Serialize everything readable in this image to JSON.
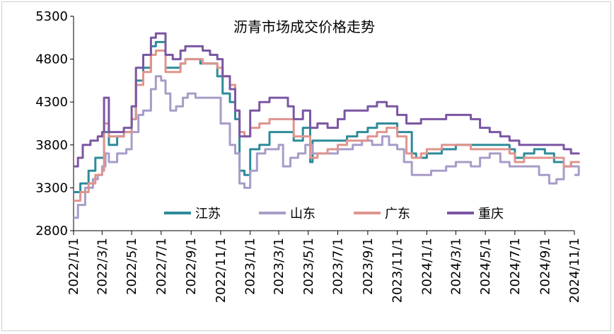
{
  "chart_data": {
    "type": "line",
    "title": "沥青市场成交价格走势",
    "xlabel": "",
    "ylabel": "",
    "ylim": [
      2800,
      5300
    ],
    "yticks": [
      "5300",
      "4800",
      "4300",
      "3800",
      "3300",
      "2800"
    ],
    "xticks": [
      "2022/1/1",
      "2022/3/1",
      "2022/5/1",
      "2022/7/1",
      "2022/9/1",
      "2022/11/1",
      "2023/1/1",
      "2023/3/1",
      "2023/5/1",
      "2023/7/1",
      "2023/9/1",
      "2023/11/1",
      "2024/1/1",
      "2024/3/1",
      "2024/5/1",
      "2024/7/1",
      "2024/9/1",
      "2024/11/1"
    ],
    "legend_position": "bottom-inside",
    "grid": false,
    "series": [
      {
        "name": "江苏",
        "color": "#2e8b9a",
        "points": [
          [
            "2022/1/1",
            3250
          ],
          [
            "2022/1/15",
            3350
          ],
          [
            "2022/2/1",
            3500
          ],
          [
            "2022/2/15",
            3650
          ],
          [
            "2022/3/1",
            3650
          ],
          [
            "2022/3/5",
            3950
          ],
          [
            "2022/3/15",
            3800
          ],
          [
            "2022/4/1",
            3900
          ],
          [
            "2022/4/15",
            3950
          ],
          [
            "2022/5/1",
            4100
          ],
          [
            "2022/5/10",
            4550
          ],
          [
            "2022/5/25",
            4700
          ],
          [
            "2022/6/10",
            4950
          ],
          [
            "2022/6/20",
            5000
          ],
          [
            "2022/7/1",
            5000
          ],
          [
            "2022/7/10",
            4700
          ],
          [
            "2022/7/25",
            4700
          ],
          [
            "2022/8/10",
            4750
          ],
          [
            "2022/8/20",
            4800
          ],
          [
            "2022/9/10",
            4800
          ],
          [
            "2022/9/20",
            4750
          ],
          [
            "2022/10/10",
            4750
          ],
          [
            "2022/10/25",
            4600
          ],
          [
            "2022/11/5",
            4400
          ],
          [
            "2022/11/20",
            4300
          ],
          [
            "2022/12/1",
            4100
          ],
          [
            "2022/12/10",
            3500
          ],
          [
            "2022/12/20",
            3450
          ],
          [
            "2023/1/1",
            3750
          ],
          [
            "2023/1/20",
            3800
          ],
          [
            "2023/2/10",
            3950
          ],
          [
            "2023/3/1",
            3950
          ],
          [
            "2023/3/20",
            3950
          ],
          [
            "2023/4/1",
            3850
          ],
          [
            "2023/4/20",
            4000
          ],
          [
            "2023/5/5",
            3600
          ],
          [
            "2023/5/10",
            3850
          ],
          [
            "2023/6/1",
            3850
          ],
          [
            "2023/7/1",
            3850
          ],
          [
            "2023/7/20",
            3900
          ],
          [
            "2023/8/10",
            3950
          ],
          [
            "2023/9/1",
            4000
          ],
          [
            "2023/9/20",
            4050
          ],
          [
            "2023/10/10",
            4050
          ],
          [
            "2023/11/1",
            3950
          ],
          [
            "2023/11/15",
            3950
          ],
          [
            "2023/12/1",
            3700
          ],
          [
            "2023/12/10",
            3650
          ],
          [
            "2024/1/1",
            3700
          ],
          [
            "2024/2/1",
            3750
          ],
          [
            "2024/3/1",
            3800
          ],
          [
            "2024/4/1",
            3800
          ],
          [
            "2024/5/1",
            3800
          ],
          [
            "2024/6/1",
            3800
          ],
          [
            "2024/6/20",
            3750
          ],
          [
            "2024/7/1",
            3650
          ],
          [
            "2024/7/20",
            3700
          ],
          [
            "2024/8/10",
            3750
          ],
          [
            "2024/9/1",
            3700
          ],
          [
            "2024/9/20",
            3600
          ],
          [
            "2024/10/10",
            3550
          ],
          [
            "2024/10/25",
            3600
          ],
          [
            "2024/11/10",
            3600
          ]
        ]
      },
      {
        "name": "山东",
        "color": "#a89cc8",
        "points": [
          [
            "2022/1/1",
            2950
          ],
          [
            "2022/1/10",
            3100
          ],
          [
            "2022/1/25",
            3300
          ],
          [
            "2022/2/10",
            3400
          ],
          [
            "2022/2/20",
            3450
          ],
          [
            "2022/3/1",
            3550
          ],
          [
            "2022/3/8",
            3700
          ],
          [
            "2022/3/15",
            3600
          ],
          [
            "2022/4/1",
            3700
          ],
          [
            "2022/4/20",
            3750
          ],
          [
            "2022/5/1",
            3950
          ],
          [
            "2022/5/15",
            4150
          ],
          [
            "2022/5/25",
            4200
          ],
          [
            "2022/6/10",
            4450
          ],
          [
            "2022/6/20",
            4600
          ],
          [
            "2022/7/1",
            4550
          ],
          [
            "2022/7/10",
            4400
          ],
          [
            "2022/7/20",
            4200
          ],
          [
            "2022/8/1",
            4250
          ],
          [
            "2022/8/15",
            4350
          ],
          [
            "2022/8/25",
            4400
          ],
          [
            "2022/9/10",
            4350
          ],
          [
            "2022/9/25",
            4350
          ],
          [
            "2022/10/20",
            4350
          ],
          [
            "2022/11/1",
            4050
          ],
          [
            "2022/11/20",
            3800
          ],
          [
            "2022/12/1",
            3700
          ],
          [
            "2022/12/10",
            3350
          ],
          [
            "2022/12/20",
            3300
          ],
          [
            "2023/1/1",
            3500
          ],
          [
            "2023/1/15",
            3700
          ],
          [
            "2023/2/1",
            3750
          ],
          [
            "2023/2/20",
            3750
          ],
          [
            "2023/3/1",
            3800
          ],
          [
            "2023/3/10",
            3550
          ],
          [
            "2023/3/25",
            3650
          ],
          [
            "2023/4/10",
            3700
          ],
          [
            "2023/4/25",
            3800
          ],
          [
            "2023/5/10",
            3700
          ],
          [
            "2023/6/1",
            3700
          ],
          [
            "2023/7/1",
            3750
          ],
          [
            "2023/8/1",
            3800
          ],
          [
            "2023/8/20",
            3850
          ],
          [
            "2023/9/10",
            3800
          ],
          [
            "2023/10/1",
            3900
          ],
          [
            "2023/10/15",
            3800
          ],
          [
            "2023/11/1",
            3750
          ],
          [
            "2023/11/15",
            3600
          ],
          [
            "2023/12/1",
            3450
          ],
          [
            "2023/12/20",
            3450
          ],
          [
            "2024/1/10",
            3500
          ],
          [
            "2024/2/10",
            3550
          ],
          [
            "2024/3/1",
            3600
          ],
          [
            "2024/4/1",
            3550
          ],
          [
            "2024/4/20",
            3650
          ],
          [
            "2024/5/10",
            3700
          ],
          [
            "2024/6/1",
            3600
          ],
          [
            "2024/6/20",
            3550
          ],
          [
            "2024/7/10",
            3550
          ],
          [
            "2024/8/1",
            3550
          ],
          [
            "2024/8/20",
            3450
          ],
          [
            "2024/9/10",
            3350
          ],
          [
            "2024/9/25",
            3400
          ],
          [
            "2024/10/10",
            3550
          ],
          [
            "2024/10/25",
            3550
          ],
          [
            "2024/11/10",
            3450
          ]
        ]
      },
      {
        "name": "广东",
        "color": "#e0948e",
        "points": [
          [
            "2022/1/1",
            3150
          ],
          [
            "2022/1/15",
            3250
          ],
          [
            "2022/2/1",
            3350
          ],
          [
            "2022/2/15",
            3450
          ],
          [
            "2022/3/1",
            3500
          ],
          [
            "2022/3/5",
            4050
          ],
          [
            "2022/3/15",
            3900
          ],
          [
            "2022/4/1",
            3900
          ],
          [
            "2022/4/15",
            3950
          ],
          [
            "2022/5/1",
            4100
          ],
          [
            "2022/5/10",
            4500
          ],
          [
            "2022/5/25",
            4650
          ],
          [
            "2022/6/10",
            4850
          ],
          [
            "2022/6/20",
            4900
          ],
          [
            "2022/7/1",
            4900
          ],
          [
            "2022/7/10",
            4650
          ],
          [
            "2022/7/25",
            4650
          ],
          [
            "2022/8/10",
            4750
          ],
          [
            "2022/8/20",
            4800
          ],
          [
            "2022/9/10",
            4800
          ],
          [
            "2022/9/25",
            4750
          ],
          [
            "2022/10/10",
            4750
          ],
          [
            "2022/10/25",
            4700
          ],
          [
            "2022/11/5",
            4600
          ],
          [
            "2022/11/20",
            4500
          ],
          [
            "2022/12/1",
            4200
          ],
          [
            "2022/12/10",
            3950
          ],
          [
            "2022/12/20",
            3900
          ],
          [
            "2023/1/1",
            4000
          ],
          [
            "2023/1/20",
            4050
          ],
          [
            "2023/2/10",
            4100
          ],
          [
            "2023/3/1",
            4100
          ],
          [
            "2023/3/20",
            4100
          ],
          [
            "2023/4/1",
            3900
          ],
          [
            "2023/4/20",
            3900
          ],
          [
            "2023/5/5",
            3650
          ],
          [
            "2023/5/20",
            3700
          ],
          [
            "2023/6/10",
            3750
          ],
          [
            "2023/7/1",
            3800
          ],
          [
            "2023/7/20",
            3850
          ],
          [
            "2023/8/10",
            3850
          ],
          [
            "2023/9/1",
            3900
          ],
          [
            "2023/9/20",
            3950
          ],
          [
            "2023/10/10",
            4000
          ],
          [
            "2023/11/1",
            3900
          ],
          [
            "2023/11/20",
            3700
          ],
          [
            "2023/12/1",
            3650
          ],
          [
            "2023/12/20",
            3700
          ],
          [
            "2024/1/1",
            3750
          ],
          [
            "2024/2/1",
            3800
          ],
          [
            "2024/3/1",
            3800
          ],
          [
            "2024/4/1",
            3750
          ],
          [
            "2024/5/1",
            3750
          ],
          [
            "2024/6/1",
            3750
          ],
          [
            "2024/6/20",
            3700
          ],
          [
            "2024/7/1",
            3600
          ],
          [
            "2024/7/20",
            3650
          ],
          [
            "2024/8/10",
            3650
          ],
          [
            "2024/9/1",
            3650
          ],
          [
            "2024/9/20",
            3650
          ],
          [
            "2024/10/10",
            3550
          ],
          [
            "2024/10/25",
            3600
          ],
          [
            "2024/11/10",
            3600
          ]
        ]
      },
      {
        "name": "重庆",
        "color": "#7b56a3",
        "points": [
          [
            "2022/1/1",
            3550
          ],
          [
            "2022/1/10",
            3650
          ],
          [
            "2022/1/20",
            3800
          ],
          [
            "2022/2/5",
            3850
          ],
          [
            "2022/2/20",
            3900
          ],
          [
            "2022/3/1",
            3950
          ],
          [
            "2022/3/5",
            4350
          ],
          [
            "2022/3/15",
            3950
          ],
          [
            "2022/4/1",
            3950
          ],
          [
            "2022/4/15",
            4000
          ],
          [
            "2022/5/1",
            4250
          ],
          [
            "2022/5/10",
            4700
          ],
          [
            "2022/5/25",
            4850
          ],
          [
            "2022/6/10",
            5050
          ],
          [
            "2022/6/20",
            5100
          ],
          [
            "2022/7/1",
            5100
          ],
          [
            "2022/7/10",
            4850
          ],
          [
            "2022/7/25",
            4800
          ],
          [
            "2022/8/10",
            4900
          ],
          [
            "2022/8/20",
            4950
          ],
          [
            "2022/9/10",
            4950
          ],
          [
            "2022/9/25",
            4900
          ],
          [
            "2022/10/10",
            4850
          ],
          [
            "2022/10/25",
            4800
          ],
          [
            "2022/11/5",
            4600
          ],
          [
            "2022/11/20",
            4450
          ],
          [
            "2022/12/1",
            4200
          ],
          [
            "2022/12/10",
            3900
          ],
          [
            "2022/12/20",
            3900
          ],
          [
            "2023/1/1",
            4200
          ],
          [
            "2023/1/20",
            4300
          ],
          [
            "2023/2/10",
            4350
          ],
          [
            "2023/3/1",
            4350
          ],
          [
            "2023/3/20",
            4250
          ],
          [
            "2023/4/1",
            4100
          ],
          [
            "2023/4/20",
            4200
          ],
          [
            "2023/5/5",
            4000
          ],
          [
            "2023/5/20",
            4050
          ],
          [
            "2023/6/10",
            4000
          ],
          [
            "2023/7/1",
            4100
          ],
          [
            "2023/7/15",
            4200
          ],
          [
            "2023/8/1",
            4200
          ],
          [
            "2023/9/1",
            4250
          ],
          [
            "2023/9/20",
            4300
          ],
          [
            "2023/10/10",
            4250
          ],
          [
            "2023/11/1",
            4150
          ],
          [
            "2023/11/20",
            4050
          ],
          [
            "2023/12/1",
            4050
          ],
          [
            "2023/12/20",
            4100
          ],
          [
            "2024/1/10",
            4100
          ],
          [
            "2024/2/10",
            4150
          ],
          [
            "2024/3/1",
            4150
          ],
          [
            "2024/4/1",
            4100
          ],
          [
            "2024/4/20",
            4000
          ],
          [
            "2024/5/10",
            3950
          ],
          [
            "2024/6/1",
            3900
          ],
          [
            "2024/6/20",
            3850
          ],
          [
            "2024/7/10",
            3800
          ],
          [
            "2024/7/25",
            3800
          ],
          [
            "2024/8/10",
            3800
          ],
          [
            "2024/9/1",
            3800
          ],
          [
            "2024/9/20",
            3800
          ],
          [
            "2024/10/10",
            3750
          ],
          [
            "2024/10/25",
            3700
          ],
          [
            "2024/11/10",
            3700
          ]
        ]
      }
    ]
  }
}
